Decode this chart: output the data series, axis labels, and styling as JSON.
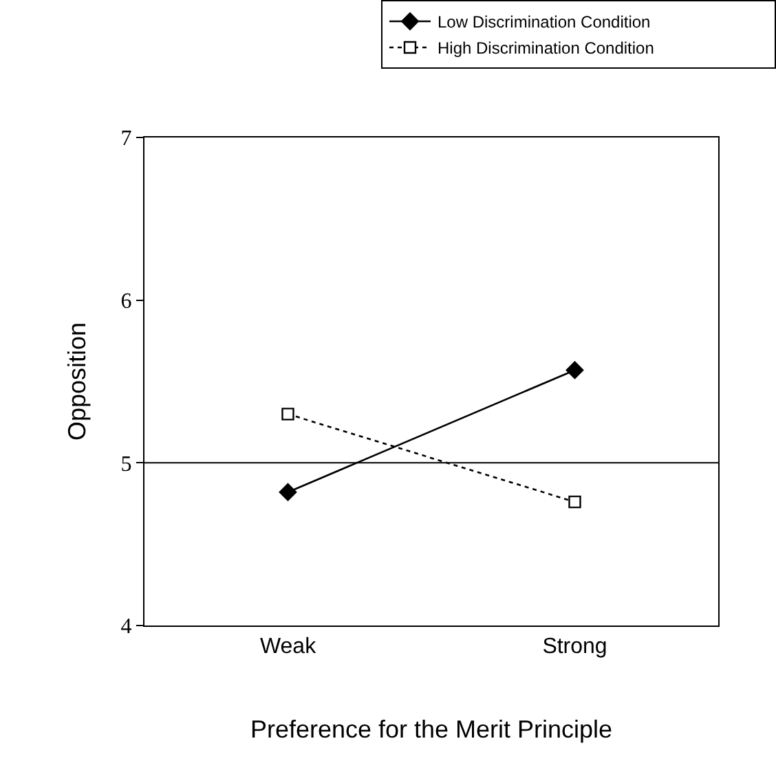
{
  "chart_data": {
    "type": "line",
    "xlabel": "Preference for the Merit Principle",
    "ylabel": "Opposition",
    "categories": [
      "Weak",
      "Strong"
    ],
    "series": [
      {
        "name": "Low Discrimination Condition",
        "color": "#000000",
        "values": [
          4.82,
          5.57
        ],
        "marker": "diamond",
        "line_style": "solid"
      },
      {
        "name": "High Discrimination Condition",
        "color": "#000000",
        "values": [
          5.3,
          4.76
        ],
        "marker": "square",
        "line_style": "dotted"
      }
    ],
    "ylim": [
      4,
      7
    ],
    "yticks": [
      4,
      5,
      6,
      7
    ],
    "grid": false,
    "legend": "top",
    "ref_lines": [
      {
        "axis": "y",
        "value": 5,
        "color": "#000000",
        "line_style": "solid"
      }
    ]
  }
}
